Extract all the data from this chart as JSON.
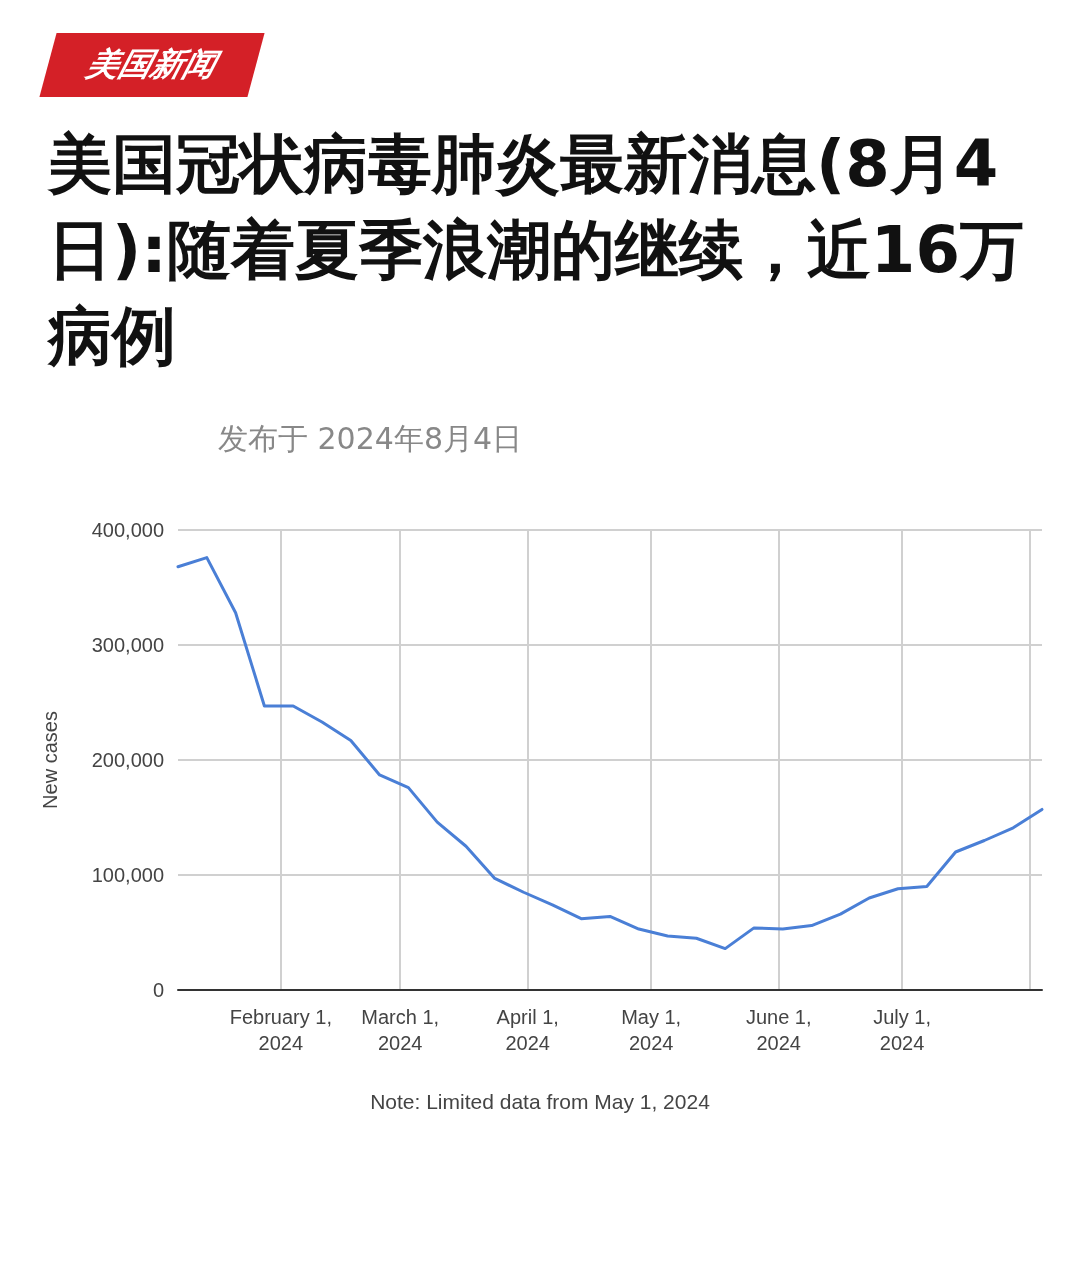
{
  "chart_data": {
    "type": "line",
    "title": "美国冠状病毒肺炎最新消息(8月4日):随着夏季浪潮的继续，近16万病例",
    "annotations": [
      "美国新闻",
      "发布于 2024年8月4日",
      "Note: Limited data from May 1, 2024"
    ],
    "ylabel": "New cases",
    "x": [
      "2024-01-07",
      "2024-01-14",
      "2024-01-21",
      "2024-01-28",
      "2024-02-04",
      "2024-02-11",
      "2024-02-18",
      "2024-02-25",
      "2024-03-03",
      "2024-03-10",
      "2024-03-17",
      "2024-03-24",
      "2024-03-31",
      "2024-04-07",
      "2024-04-14",
      "2024-04-21",
      "2024-04-28",
      "2024-05-05",
      "2024-05-12",
      "2024-05-19",
      "2024-05-26",
      "2024-06-02",
      "2024-06-09",
      "2024-06-16",
      "2024-06-23",
      "2024-06-30",
      "2024-07-07",
      "2024-07-14",
      "2024-07-21",
      "2024-07-28",
      "2024-08-04"
    ],
    "series": [
      {
        "color": "#4a7fd6",
        "values": [
          368000,
          376000,
          328000,
          247000,
          247000,
          233000,
          217000,
          187000,
          176000,
          146000,
          125000,
          97000,
          85000,
          74000,
          62000,
          64000,
          53000,
          47000,
          45000,
          36000,
          54000,
          53000,
          56000,
          66000,
          80000,
          88000,
          90000,
          120000,
          130000,
          141000,
          157000
        ]
      }
    ],
    "xlim": [
      "2024-01-07",
      "2024-08-04"
    ],
    "xticks": [
      {
        "value": "2024-02-01",
        "label": "February 1,\n2024"
      },
      {
        "value": "2024-03-01",
        "label": "March 1,\n2024"
      },
      {
        "value": "2024-04-01",
        "label": "April 1,\n2024"
      },
      {
        "value": "2024-05-01",
        "label": "May 1,\n2024"
      },
      {
        "value": "2024-06-01",
        "label": "June 1,\n2024"
      },
      {
        "value": "2024-07-01",
        "label": "July 1,\n2024"
      },
      {
        "value": "2024-08-01",
        "label": null
      }
    ],
    "ylim": [
      0,
      400000
    ],
    "yticks": [
      0,
      {
        "value": 100000,
        "label": "100,000"
      },
      {
        "value": 200000,
        "label": "200,000"
      },
      {
        "value": 300000,
        "label": "300,000"
      },
      {
        "value": 400000,
        "label": "400,000"
      }
    ],
    "grid": true,
    "marker": "none",
    "line_style": "solid"
  }
}
